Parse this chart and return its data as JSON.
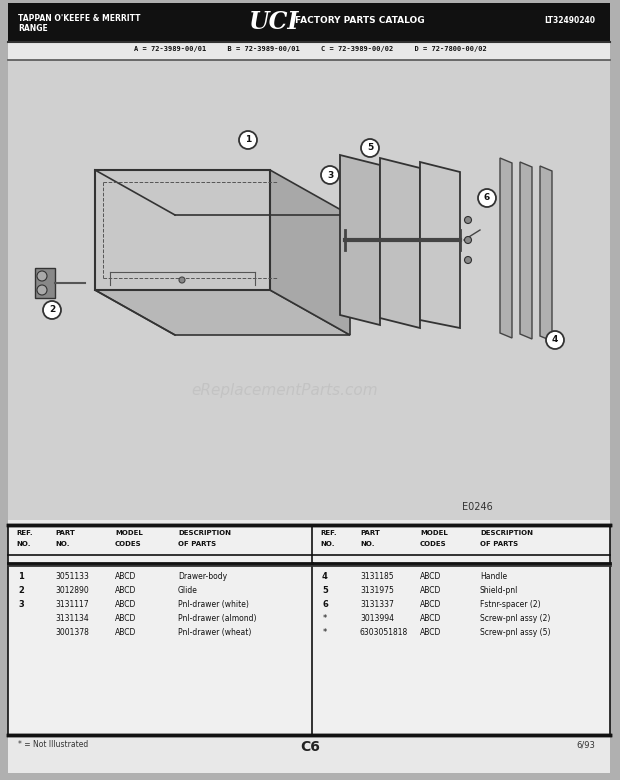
{
  "bg_outer": "#b0b0b0",
  "bg_page": "#c8c8c8",
  "bg_diagram": "#c0c0c0",
  "bg_header": "#1a1a1a",
  "header_left1": "TAPPAN O'KEEFE & MERRITT",
  "header_left2": "RANGE",
  "header_logo": "UCI",
  "header_center": "FACTORY PARTS CATALOG",
  "header_right": "LT32490240",
  "model_codes": "A = 72-3989-00/01     B = 72-3989-00/01     C = 72-3989-00/02     D = 72-7800-00/02",
  "diagram_label": "E0246",
  "page_code": "C6",
  "page_date": "6/93",
  "footnote": "* = Not Illustrated",
  "left_parts": [
    [
      "1",
      "3051133",
      "ABCD",
      "Drawer-body"
    ],
    [
      "2",
      "3012890",
      "ABCD",
      "Glide"
    ],
    [
      "3",
      "3131117",
      "ABCD",
      "Pnl-drawer (white)"
    ],
    [
      "",
      "3131134",
      "ABCD",
      "Pnl-drawer (almond)"
    ],
    [
      "",
      "3001378",
      "ABCD",
      "Pnl-drawer (wheat)"
    ]
  ],
  "right_parts": [
    [
      "4",
      "3131185",
      "ABCD",
      "Handle"
    ],
    [
      "5",
      "3131975",
      "ABCD",
      "Shield-pnl"
    ],
    [
      "6",
      "3131337",
      "ABCD",
      "Fstnr-spacer (2)"
    ],
    [
      "*",
      "3013994",
      "ABCD",
      "Screw-pnl assy (2)"
    ],
    [
      "*",
      "6303051818",
      "ABCD",
      "Screw-pnl assy (5)"
    ]
  ]
}
